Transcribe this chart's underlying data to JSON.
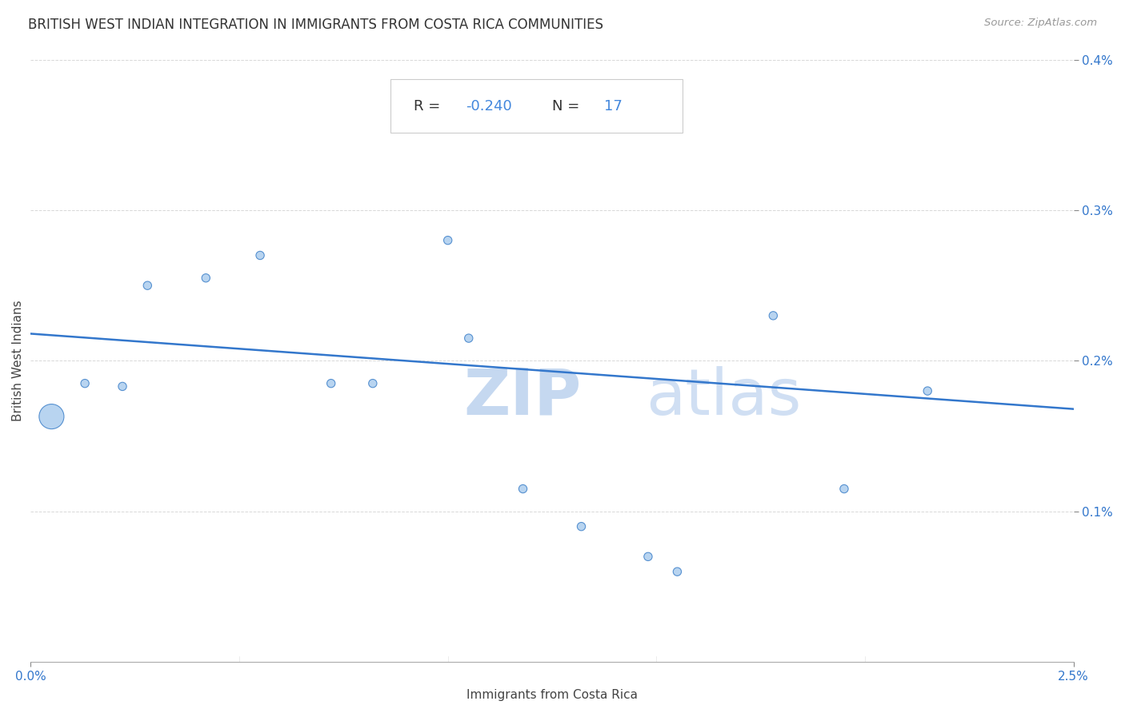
{
  "title": "BRITISH WEST INDIAN INTEGRATION IN IMMIGRANTS FROM COSTA RICA COMMUNITIES",
  "source": "Source: ZipAtlas.com",
  "xlabel": "Immigrants from Costa Rica",
  "ylabel": "British West Indians",
  "R": -0.24,
  "N": 17,
  "xlim": [
    0.0,
    0.025
  ],
  "ylim": [
    0.0,
    0.004
  ],
  "xticks": [
    0.0,
    0.025
  ],
  "xtick_labels": [
    "0.0%",
    "2.5%"
  ],
  "yticks": [
    0.001,
    0.002,
    0.003,
    0.004
  ],
  "ytick_labels": [
    "0.1%",
    "0.2%",
    "0.3%",
    "0.4%"
  ],
  "scatter_x": [
    0.0005,
    0.0013,
    0.0022,
    0.0028,
    0.0042,
    0.0055,
    0.0072,
    0.0082,
    0.01,
    0.0105,
    0.0118,
    0.0132,
    0.0148,
    0.0155,
    0.0178,
    0.0195,
    0.0215
  ],
  "scatter_y": [
    0.00163,
    0.00185,
    0.00183,
    0.0025,
    0.00255,
    0.0027,
    0.00185,
    0.00185,
    0.0028,
    0.00215,
    0.00115,
    0.0009,
    0.0007,
    0.0006,
    0.0023,
    0.00115,
    0.0018
  ],
  "scatter_size": [
    500,
    55,
    55,
    55,
    55,
    55,
    55,
    55,
    55,
    55,
    55,
    55,
    55,
    55,
    55,
    55,
    55
  ],
  "dot_color": "#b8d4f0",
  "dot_edge_color": "#5590d0",
  "line_color": "#3377cc",
  "regression_x_start": 0.0,
  "regression_x_end": 0.025,
  "regression_y_start": 0.00218,
  "regression_y_end": 0.00168,
  "watermark_zip": "ZIP",
  "watermark_atlas": "atlas",
  "watermark_color": "#c5d8f0",
  "title_fontsize": 12,
  "axis_label_fontsize": 11,
  "tick_fontsize": 11,
  "stat_fontsize": 13,
  "background_color": "#ffffff",
  "grid_color": "#d8d8d8",
  "stat_r_label": "R = ",
  "stat_r_value": "-0.240",
  "stat_n_label": "N = ",
  "stat_n_value": "17",
  "stat_color_label": "#333333",
  "stat_color_value": "#4488dd"
}
